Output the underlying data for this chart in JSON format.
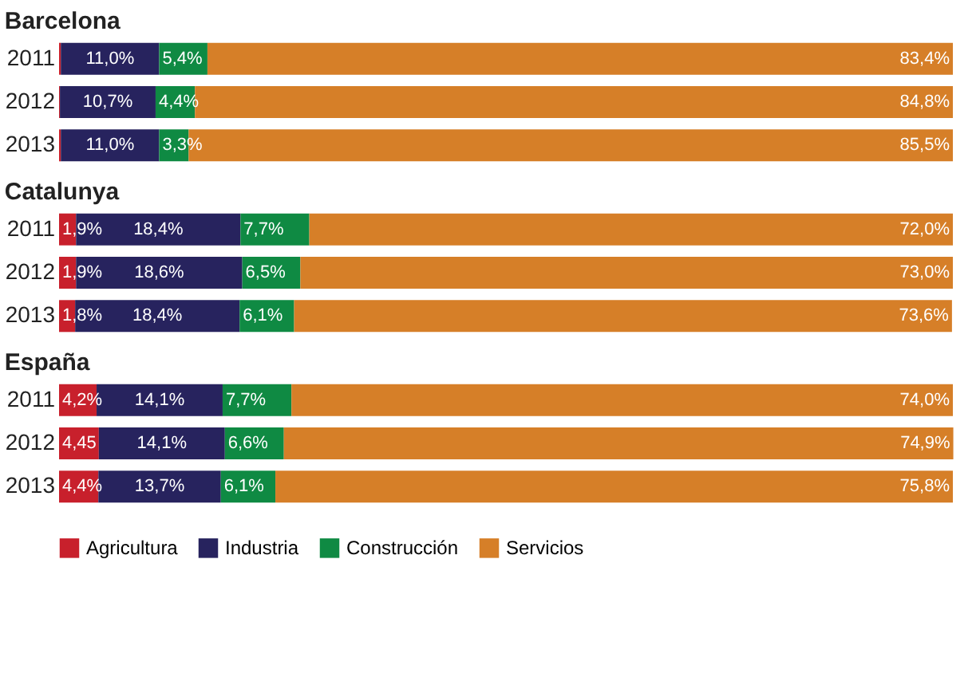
{
  "chart_data": [
    {
      "type": "bar",
      "orientation": "horizontal",
      "stacked": true,
      "title": "Barcelona",
      "categories": [
        "2011",
        "2012",
        "2013"
      ],
      "xlim": [
        0,
        100
      ],
      "tick_labels": "y",
      "series": [
        {
          "color": "#c8202c",
          "values": [
            0.2,
            0.1,
            0.2
          ],
          "value_labels": [
            null,
            null,
            null
          ]
        },
        {
          "color": "#27235e",
          "values": [
            11.0,
            10.7,
            11.0
          ],
          "value_labels": [
            "11,0%",
            "10,7%",
            "11,0%"
          ]
        },
        {
          "color": "#0f8a43",
          "values": [
            5.4,
            4.4,
            3.3
          ],
          "value_labels": [
            "5,4%",
            "4,4%",
            "3,3%"
          ]
        },
        {
          "color": "#d67f28",
          "values": [
            83.4,
            84.8,
            85.5
          ],
          "value_labels": [
            "83,4%",
            "84,8%",
            "85,5%"
          ]
        }
      ]
    },
    {
      "type": "bar",
      "orientation": "horizontal",
      "stacked": true,
      "title": "Catalunya",
      "categories": [
        "2011",
        "2012",
        "2013"
      ],
      "xlim": [
        0,
        100
      ],
      "tick_labels": "y",
      "series": [
        {
          "color": "#c8202c",
          "values": [
            1.9,
            1.9,
            1.8
          ],
          "value_labels": [
            "1,9%",
            "1,9%",
            "1,8%"
          ]
        },
        {
          "color": "#27235e",
          "values": [
            18.4,
            18.6,
            18.4
          ],
          "value_labels": [
            "18,4%",
            "18,6%",
            "18,4%"
          ]
        },
        {
          "color": "#0f8a43",
          "values": [
            7.7,
            6.5,
            6.1
          ],
          "value_labels": [
            "7,7%",
            "6,5%",
            "6,1%"
          ]
        },
        {
          "color": "#d67f28",
          "values": [
            72.0,
            73.0,
            73.6
          ],
          "value_labels": [
            "72,0%",
            "73,0%",
            "73,6%"
          ]
        }
      ]
    },
    {
      "type": "bar",
      "orientation": "horizontal",
      "stacked": true,
      "title": "España",
      "categories": [
        "2011",
        "2012",
        "2013"
      ],
      "xlim": [
        0,
        100
      ],
      "tick_labels": "y",
      "legend": "bottom",
      "series": [
        {
          "name": "Agricultura",
          "color": "#c8202c",
          "values": [
            4.2,
            4.45,
            4.4
          ],
          "value_labels": [
            "4,2%",
            "4,45",
            "4,4%"
          ]
        },
        {
          "name": "Industria",
          "color": "#27235e",
          "values": [
            14.1,
            14.1,
            13.7
          ],
          "value_labels": [
            "14,1%",
            "14,1%",
            "13,7%"
          ]
        },
        {
          "name": "Construcción",
          "color": "#0f8a43",
          "values": [
            7.7,
            6.6,
            6.1
          ],
          "value_labels": [
            "7,7%",
            "6,6%",
            "6,1%"
          ]
        },
        {
          "name": "Servicios",
          "color": "#d67f28",
          "values": [
            74.0,
            74.9,
            75.8
          ],
          "value_labels": [
            "74,0%",
            "74,9%",
            "75,8%"
          ]
        }
      ]
    }
  ]
}
